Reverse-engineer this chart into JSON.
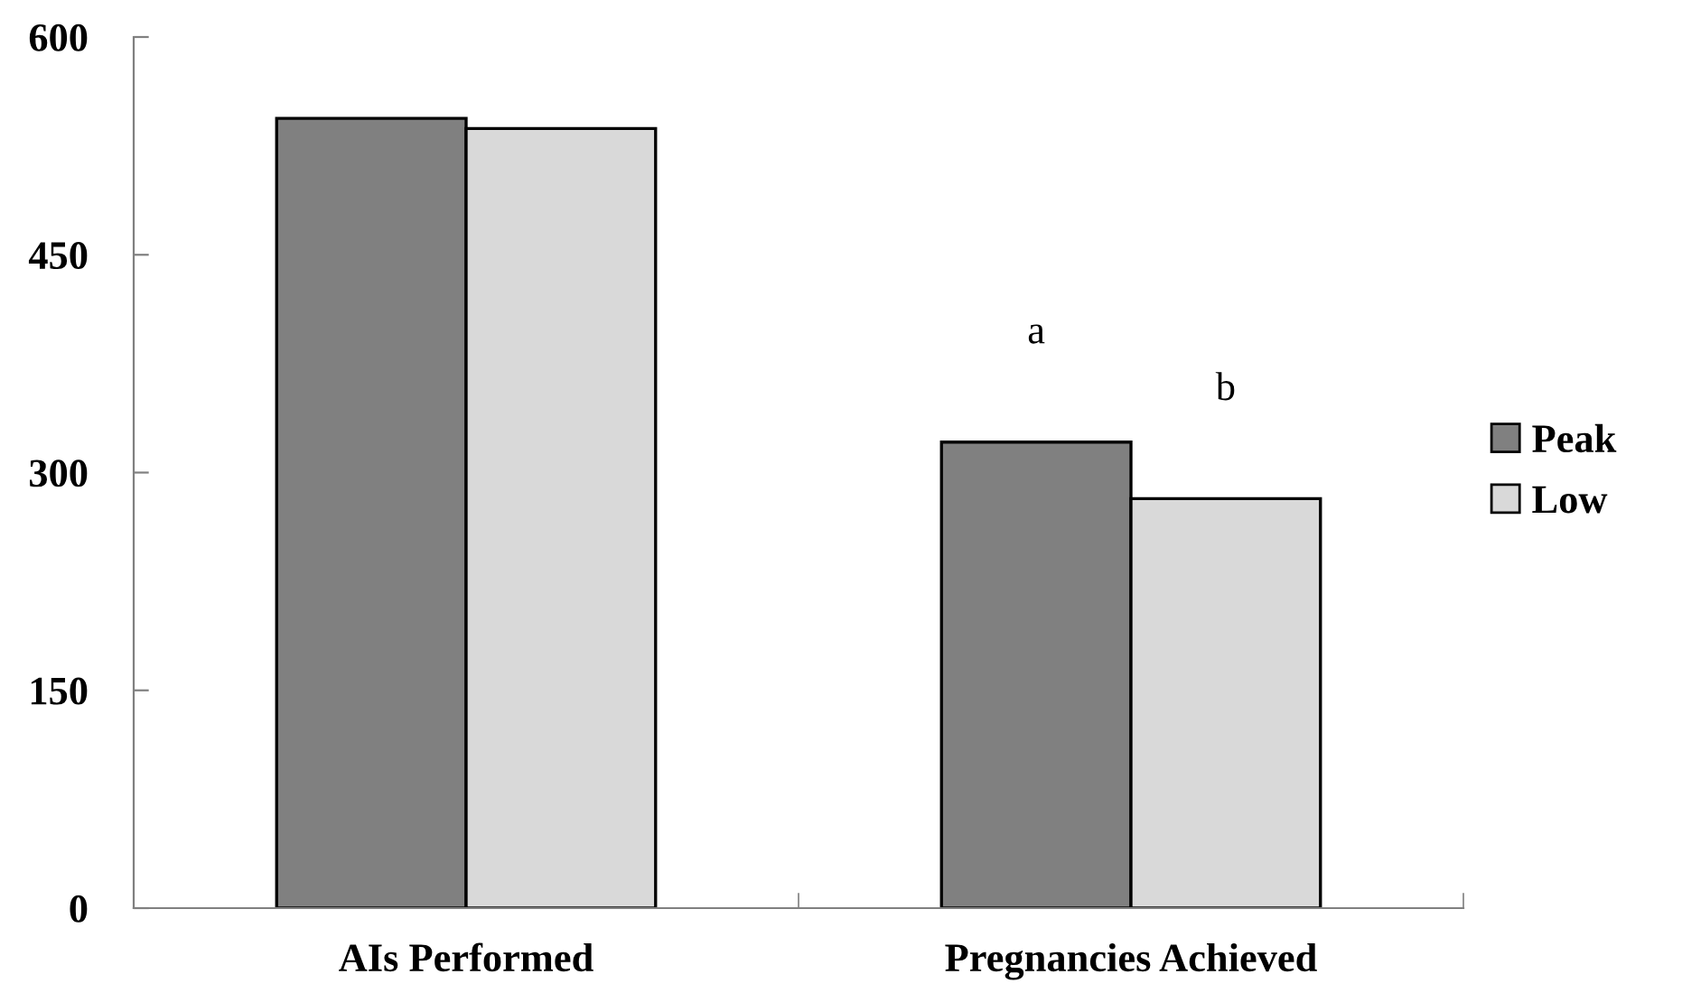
{
  "chart_data": {
    "type": "bar",
    "categories": [
      "AIs Performed",
      "Pregnancies Achieved"
    ],
    "series": [
      {
        "name": "Peak",
        "color": "#808080",
        "values": [
          544,
          321
        ]
      },
      {
        "name": "Low",
        "color": "#d9d9d9",
        "values": [
          537,
          282
        ]
      }
    ],
    "ylim": [
      0,
      600
    ],
    "yticks": [
      0,
      150,
      300,
      450,
      600
    ],
    "grid": false,
    "legend": "right",
    "annotations": [
      "a",
      "b"
    ]
  }
}
